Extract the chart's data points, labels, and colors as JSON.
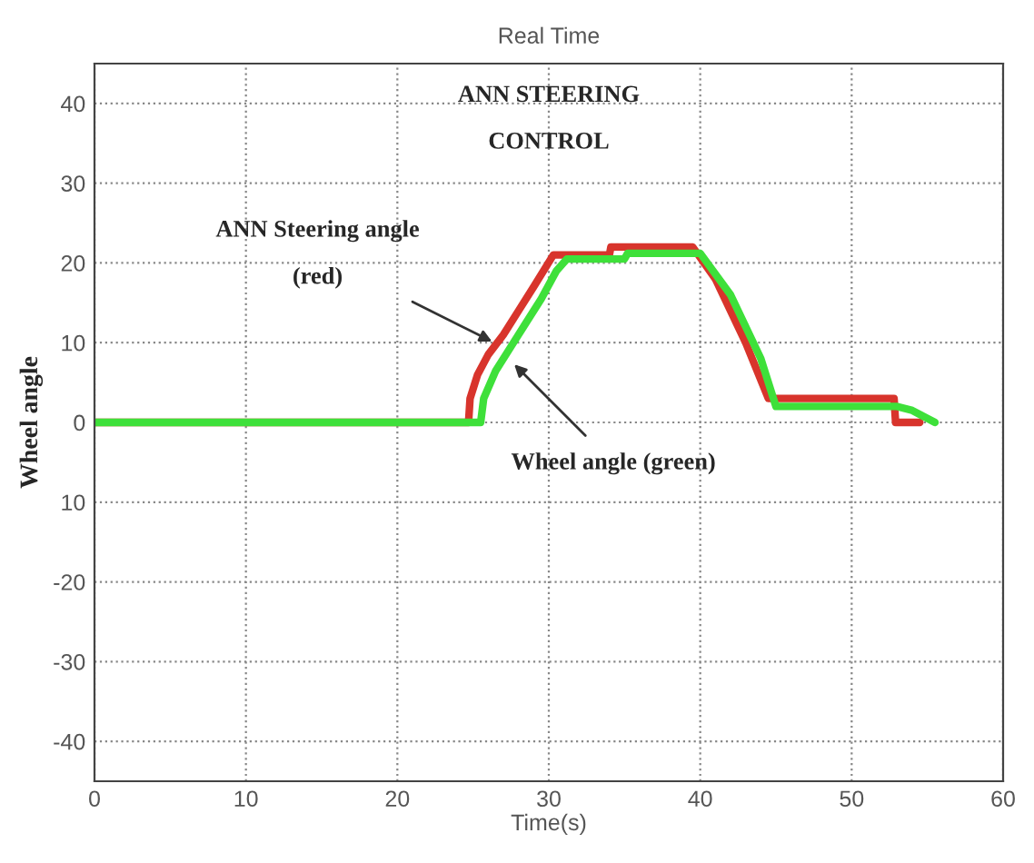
{
  "chart_data": {
    "type": "line",
    "title": "Real Time",
    "xlabel": "Time(s)",
    "ylabel": "Wheel angle",
    "xlim": [
      0,
      60
    ],
    "xticks": [
      0,
      10,
      20,
      30,
      40,
      50,
      60
    ],
    "ylim": [
      -45,
      45
    ],
    "yticks": [
      -40,
      -30,
      -20,
      {
        "value": -10,
        "label": "10"
      },
      0,
      10,
      20,
      30,
      40
    ],
    "grid": true,
    "line_style": "solid",
    "series": [
      {
        "color": "#d8342c",
        "x": [
          0,
          24.7,
          24.8,
          25.3,
          26,
          27,
          28,
          29,
          30.3,
          34,
          34.1,
          39.5,
          41,
          43,
          44.5,
          52.8,
          52.9,
          54.5
        ],
        "values": [
          0,
          0,
          3,
          6,
          8.5,
          11,
          14,
          17,
          21,
          21,
          22,
          22,
          18,
          10,
          3,
          3,
          0,
          0
        ]
      },
      {
        "color": "#3ee03a",
        "x": [
          0,
          25.5,
          25.7,
          26.5,
          27.5,
          28.5,
          29.5,
          30.5,
          31.2,
          35,
          35.2,
          40,
          42,
          44,
          45,
          53,
          54,
          55.5
        ],
        "values": [
          0,
          0,
          3,
          6.5,
          9.5,
          12.5,
          15.5,
          19,
          20.5,
          20.5,
          21.2,
          21.2,
          16,
          8,
          2,
          2,
          1.5,
          0
        ]
      }
    ],
    "annotations": [
      "ANN STEERING\n\nCONTROL",
      {
        "text": "ANN Steering angle\n\n(red)",
        "x": 26.4,
        "y": 10
      },
      {
        "text": "Wheel angle (green)",
        "x": 27.6,
        "y": 7.5
      }
    ]
  }
}
